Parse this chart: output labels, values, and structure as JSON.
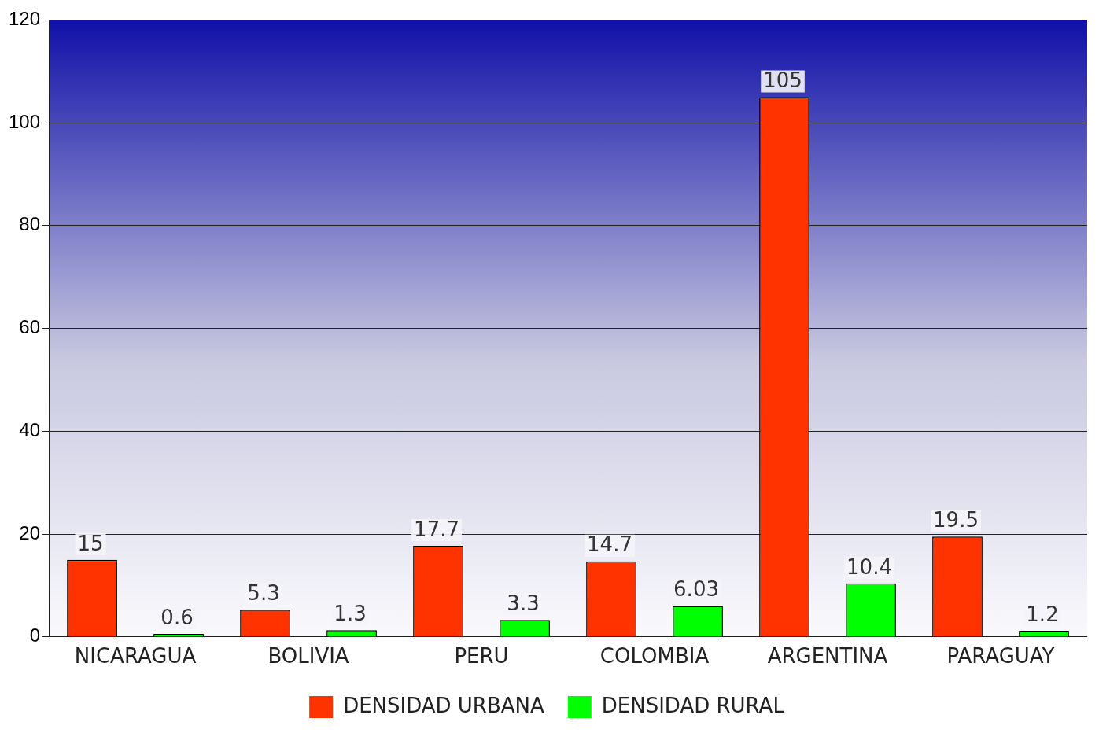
{
  "chart_data": {
    "type": "bar",
    "categories": [
      "NICARAGUA",
      "BOLIVIA",
      "PERU",
      "COLOMBIA",
      "ARGENTINA",
      "PARAGUAY"
    ],
    "series": [
      {
        "name": "DENSIDAD URBANA",
        "color": "#ff3300",
        "values": [
          15,
          5.3,
          17.7,
          14.7,
          105,
          19.5
        ]
      },
      {
        "name": "DENSIDAD RURAL",
        "color": "#00ff00",
        "values": [
          0.6,
          1.3,
          3.3,
          6.03,
          10.4,
          1.2
        ]
      }
    ],
    "ylim": [
      0,
      120
    ],
    "yticks": [
      0,
      20,
      40,
      60,
      80,
      100,
      120
    ],
    "grid": "y",
    "legend": "bottom",
    "data_labels": true
  }
}
